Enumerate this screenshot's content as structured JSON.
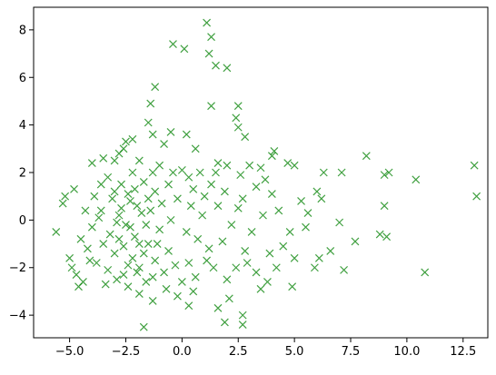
{
  "chart_data": {
    "type": "scatter",
    "color": "green",
    "marker": "x",
    "x": [
      1.1,
      1.3,
      -0.4,
      0.1,
      1.2,
      1.5,
      2.0,
      -1.2,
      -1.4,
      2.5,
      1.3,
      -1.5,
      2.4,
      2.5,
      2.8,
      -0.5,
      0.2,
      -2.5,
      -2.2,
      -1.3,
      -0.8,
      0.6,
      4.1,
      8.2,
      13.0,
      13.1,
      10.4,
      9.2,
      9.0,
      7.1,
      6.3,
      4.7,
      5.0,
      3.5,
      10.8,
      8.8,
      9.1,
      9.0,
      7.7,
      7.2,
      7.0,
      6.6,
      6.1,
      5.9,
      6.0,
      5.3,
      5.5,
      4.8,
      4.9,
      3.8,
      3.5,
      2.7,
      2.7,
      1.9,
      -1.7,
      0.3,
      0.5,
      1.6,
      2.1,
      -1.3,
      -1.9,
      -4.6,
      -5.6,
      -5.3,
      -5.2,
      -4.8,
      -4.0,
      -3.5,
      -3.0,
      -2.8,
      -2.6,
      -1.9,
      -1.0,
      0.0,
      0.8,
      1.6,
      2.0,
      3.0,
      1.3,
      1.9,
      2.7,
      3.3,
      4.0,
      4.3,
      3.6,
      3.1,
      2.8,
      2.4,
      2.0,
      1.4,
      1.2,
      0.7,
      0.3,
      0.0,
      -0.2,
      -0.8,
      -1.2,
      -1.5,
      -1.6,
      -2.0,
      -2.4,
      -2.9,
      -3.3,
      -3.8,
      -4.2,
      -4.7,
      -4.5,
      -4.0,
      -3.6,
      -3.9,
      -3.3,
      -2.7,
      -2.2,
      -1.7,
      -1.2,
      -0.6,
      -0.2,
      0.4,
      -0.5,
      -1.0,
      -1.8,
      -2.3,
      -2.8,
      -3.2,
      -2.6,
      -2.1,
      -1.6,
      -2.5,
      -3.0,
      -2.2,
      -1.9,
      -2.7,
      -2.0,
      -1.4,
      -3.5,
      -3.1,
      -2.4,
      -1.9,
      -2.8,
      -2.3,
      -3.7,
      -4.3,
      -1.1,
      -0.6,
      0.2,
      0.9,
      1.6,
      2.2,
      2.5,
      3.9,
      4.5,
      4.2,
      5.0,
      5.6,
      6.2,
      -0.9,
      -1.3,
      0.5,
      1.0,
      1.8,
      2.9,
      3.3,
      -5.0,
      -4.9,
      -4.4,
      -3.4,
      -2.6,
      -1.7,
      -0.3,
      0.6,
      1.1,
      -3.0,
      -2.1,
      -1.5,
      -3.6,
      -4.1,
      -2.9,
      -2.4,
      -1.3,
      -0.7,
      4.0,
      3.7,
      2.6,
      1.5,
      0.3,
      -0.4
    ],
    "values": [
      8.3,
      7.7,
      7.4,
      7.2,
      7.0,
      6.5,
      6.4,
      5.6,
      4.9,
      4.8,
      4.8,
      4.1,
      4.3,
      3.9,
      3.5,
      3.7,
      3.6,
      3.3,
      3.4,
      3.6,
      3.2,
      3.0,
      2.9,
      2.7,
      2.3,
      1.0,
      1.7,
      2.0,
      1.9,
      2.0,
      2.0,
      2.4,
      2.3,
      2.2,
      -2.2,
      -0.6,
      -0.7,
      0.6,
      -0.9,
      -2.1,
      -0.1,
      -1.3,
      -1.6,
      -2.0,
      1.2,
      0.8,
      -0.3,
      -0.5,
      -2.8,
      -2.6,
      -2.9,
      -4.0,
      -4.4,
      -4.3,
      -4.5,
      -3.6,
      -3.0,
      -3.7,
      -3.3,
      -3.4,
      -3.1,
      -2.8,
      -0.5,
      0.7,
      1.0,
      1.3,
      2.4,
      2.6,
      2.5,
      2.8,
      3.0,
      2.5,
      2.3,
      2.1,
      2.0,
      2.4,
      2.3,
      2.3,
      1.5,
      1.2,
      0.9,
      1.4,
      1.1,
      0.4,
      0.2,
      -0.5,
      -1.3,
      -2.0,
      -2.5,
      -2.0,
      -1.2,
      -0.8,
      -1.8,
      -2.6,
      -3.2,
      -2.2,
      -1.7,
      -1.0,
      -2.6,
      -2.2,
      -2.8,
      -2.5,
      -2.1,
      -1.8,
      -1.2,
      -2.3,
      -0.8,
      -0.3,
      0.4,
      1.0,
      1.8,
      1.5,
      2.0,
      1.6,
      1.2,
      1.5,
      0.9,
      0.6,
      0.0,
      -0.4,
      0.3,
      0.8,
      0.2,
      -0.6,
      -1.1,
      -0.7,
      -0.2,
      -0.2,
      -1.4,
      -1.6,
      -1.0,
      0.5,
      0.6,
      0.4,
      -1.0,
      0.9,
      1.1,
      -2.0,
      -0.8,
      -0.3,
      0.1,
      0.4,
      -1.0,
      -1.3,
      -0.5,
      0.2,
      0.6,
      -0.2,
      0.5,
      -1.4,
      -1.1,
      -2.0,
      -1.6,
      0.3,
      0.9,
      0.7,
      2.0,
      1.3,
      1.0,
      -0.9,
      -1.8,
      -2.2,
      -1.6,
      -2.0,
      -2.6,
      -2.7,
      -2.3,
      -1.4,
      -1.9,
      -2.4,
      -1.7,
      1.2,
      1.3,
      0.9,
      1.5,
      -1.7,
      -0.1,
      -1.9,
      -2.4,
      -2.9,
      2.7,
      1.7,
      1.9,
      2.0,
      1.8,
      2.0
    ],
    "xlim": [
      -6.6,
      13.6
    ],
    "ylim": [
      -4.95,
      8.95
    ],
    "xticks": [
      {
        "value": -5,
        "label": "−5.0"
      },
      {
        "value": -2.5,
        "label": "−2.5"
      },
      {
        "value": 0,
        "label": "0.0"
      },
      {
        "value": 2.5,
        "label": "2.5"
      },
      {
        "value": 5,
        "label": "5.0"
      },
      {
        "value": 7.5,
        "label": "7.5"
      },
      {
        "value": 10,
        "label": "10.0"
      },
      {
        "value": 12.5,
        "label": "12.5"
      }
    ],
    "yticks": [
      {
        "value": -4,
        "label": "−4"
      },
      {
        "value": -2,
        "label": "−2"
      },
      0,
      2,
      4,
      6,
      8
    ],
    "grid": false
  }
}
